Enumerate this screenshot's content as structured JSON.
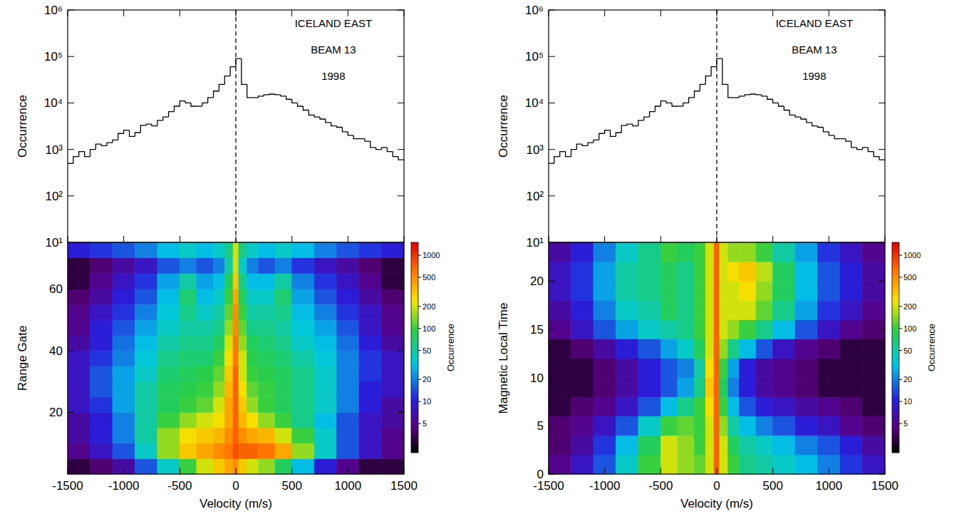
{
  "chart_data": [
    {
      "type": "histogram",
      "annotations": [
        "ICELAND EAST",
        "BEAM 13",
        "1998"
      ],
      "y_label": "Occurrence",
      "bins": [
        -1500,
        -1450,
        -1400,
        -1350,
        -1300,
        -1250,
        -1200,
        -1150,
        -1100,
        -1050,
        -1000,
        -950,
        -900,
        -850,
        -800,
        -750,
        -700,
        -650,
        -600,
        -550,
        -500,
        -450,
        -400,
        -350,
        -300,
        -250,
        -200,
        -150,
        -100,
        -50,
        0,
        50,
        100,
        150,
        200,
        250,
        300,
        350,
        400,
        450,
        500,
        550,
        600,
        650,
        700,
        750,
        800,
        850,
        900,
        950,
        1000,
        1050,
        1100,
        1150,
        1200,
        1250,
        1300,
        1350,
        1400,
        1450,
        1500
      ],
      "values": [
        500,
        700,
        900,
        700,
        1000,
        1300,
        1200,
        1400,
        1600,
        2200,
        2600,
        1900,
        2300,
        3300,
        3500,
        3200,
        4200,
        5000,
        6500,
        8500,
        11000,
        10000,
        8500,
        8500,
        10000,
        13000,
        18000,
        25000,
        38000,
        60000,
        90000,
        25000,
        13000,
        13000,
        14000,
        15000,
        15500,
        15000,
        14000,
        12000,
        10000,
        8500,
        7000,
        5500,
        5000,
        4500,
        3800,
        3200,
        3000,
        2400,
        2000,
        1700,
        1700,
        1500,
        1100,
        1000,
        1100,
        900,
        700,
        600
      ],
      "xlim": [
        -1500,
        1500
      ],
      "xticks": [
        -1500,
        -1000,
        -500,
        0,
        500,
        1000,
        1500
      ],
      "ylim": [
        10,
        1000000
      ],
      "yticks": [
        {
          "value": 10,
          "label": "10¹"
        },
        {
          "value": 100,
          "label": "10²"
        },
        {
          "value": 1000,
          "label": "10³"
        },
        {
          "value": 10000,
          "label": "10⁴"
        },
        {
          "value": 100000,
          "label": "10⁵"
        },
        {
          "value": 1000000,
          "label": "10⁶"
        }
      ],
      "log": "y",
      "tick_labels": "y",
      "vlines": [
        0
      ]
    },
    {
      "type": "heatmap",
      "x_label": "Velocity (m/s)",
      "y_label": "Range Gate",
      "x_bins": [
        -1500,
        -1300,
        -1100,
        -900,
        -700,
        -500,
        -350,
        -200,
        -100,
        -25,
        25,
        100,
        200,
        350,
        500,
        700,
        900,
        1100,
        1300,
        1500
      ],
      "y_bins": [
        0,
        5,
        10,
        15,
        20,
        25,
        30,
        35,
        40,
        45,
        50,
        55,
        60,
        65,
        70,
        75
      ],
      "cells": [
        [
          3,
          4,
          6,
          15,
          40,
          100,
          200,
          300,
          400,
          500,
          300,
          200,
          150,
          80,
          30,
          10,
          5,
          3,
          3
        ],
        [
          5,
          8,
          15,
          40,
          150,
          300,
          400,
          500,
          600,
          800,
          700,
          700,
          600,
          400,
          150,
          40,
          15,
          8,
          5
        ],
        [
          6,
          10,
          20,
          50,
          150,
          250,
          300,
          350,
          500,
          700,
          500,
          400,
          350,
          200,
          100,
          40,
          15,
          8,
          5
        ],
        [
          6,
          10,
          20,
          50,
          100,
          150,
          200,
          250,
          400,
          700,
          350,
          250,
          150,
          100,
          60,
          30,
          15,
          8,
          6
        ],
        [
          8,
          12,
          25,
          50,
          80,
          100,
          120,
          200,
          400,
          700,
          300,
          150,
          100,
          80,
          60,
          40,
          20,
          10,
          6
        ],
        [
          8,
          15,
          25,
          50,
          80,
          90,
          100,
          150,
          350,
          700,
          250,
          120,
          100,
          80,
          60,
          40,
          20,
          10,
          8
        ],
        [
          8,
          15,
          25,
          40,
          70,
          80,
          90,
          120,
          300,
          700,
          200,
          100,
          90,
          80,
          60,
          40,
          20,
          12,
          8
        ],
        [
          8,
          12,
          20,
          35,
          60,
          70,
          70,
          100,
          250,
          600,
          200,
          90,
          80,
          70,
          50,
          35,
          20,
          12,
          8
        ],
        [
          6,
          10,
          18,
          30,
          50,
          60,
          60,
          80,
          200,
          600,
          150,
          80,
          70,
          60,
          40,
          30,
          18,
          10,
          6
        ],
        [
          5,
          10,
          15,
          25,
          40,
          50,
          50,
          60,
          150,
          500,
          120,
          60,
          60,
          50,
          35,
          25,
          15,
          8,
          5
        ],
        [
          5,
          8,
          12,
          20,
          35,
          60,
          40,
          50,
          120,
          500,
          100,
          50,
          50,
          60,
          30,
          20,
          12,
          8,
          5
        ],
        [
          4,
          6,
          10,
          15,
          30,
          70,
          30,
          40,
          100,
          400,
          80,
          40,
          40,
          70,
          25,
          15,
          10,
          6,
          4
        ],
        [
          3,
          5,
          8,
          12,
          25,
          50,
          25,
          30,
          80,
          300,
          60,
          30,
          30,
          50,
          20,
          12,
          8,
          5,
          3
        ],
        [
          3,
          4,
          6,
          8,
          15,
          20,
          15,
          20,
          50,
          200,
          40,
          20,
          15,
          20,
          12,
          8,
          6,
          4,
          3
        ],
        [
          10,
          12,
          15,
          20,
          30,
          40,
          30,
          40,
          60,
          200,
          60,
          40,
          30,
          40,
          30,
          20,
          15,
          12,
          10
        ]
      ],
      "xlim": [
        -1500,
        1500
      ],
      "xticks": [
        -1500,
        -1000,
        -500,
        0,
        500,
        1000,
        1500
      ],
      "ylim": [
        0,
        75
      ],
      "yticks": [
        20,
        40,
        60
      ],
      "colorbar": {
        "label": "Occurrence",
        "range": [
          2,
          1500
        ],
        "ticks": [
          5,
          10,
          20,
          50,
          100,
          200,
          500,
          1000
        ],
        "log": true
      },
      "vlines": [
        0
      ]
    },
    {
      "type": "histogram",
      "annotations": [
        "ICELAND EAST",
        "BEAM 13",
        "1998"
      ],
      "y_label": "Occurrence",
      "bins": [
        -1500,
        -1450,
        -1400,
        -1350,
        -1300,
        -1250,
        -1200,
        -1150,
        -1100,
        -1050,
        -1000,
        -950,
        -900,
        -850,
        -800,
        -750,
        -700,
        -650,
        -600,
        -550,
        -500,
        -450,
        -400,
        -350,
        -300,
        -250,
        -200,
        -150,
        -100,
        -50,
        0,
        50,
        100,
        150,
        200,
        250,
        300,
        350,
        400,
        450,
        500,
        550,
        600,
        650,
        700,
        750,
        800,
        850,
        900,
        950,
        1000,
        1050,
        1100,
        1150,
        1200,
        1250,
        1300,
        1350,
        1400,
        1450,
        1500
      ],
      "values": [
        500,
        700,
        900,
        700,
        1000,
        1300,
        1200,
        1400,
        1600,
        2200,
        2600,
        1900,
        2300,
        3300,
        3500,
        3200,
        4200,
        5000,
        6500,
        8500,
        11000,
        10000,
        8500,
        8500,
        10000,
        13000,
        18000,
        25000,
        38000,
        60000,
        90000,
        25000,
        13000,
        13000,
        14000,
        15000,
        15500,
        15000,
        14000,
        12000,
        10000,
        8500,
        7000,
        5500,
        5000,
        4500,
        3800,
        3200,
        3000,
        2400,
        2000,
        1700,
        1700,
        1500,
        1100,
        1000,
        1100,
        900,
        700,
        600
      ],
      "xlim": [
        -1500,
        1500
      ],
      "xticks": [
        -1500,
        -1000,
        -500,
        0,
        500,
        1000,
        1500
      ],
      "ylim": [
        10,
        1000000
      ],
      "yticks": [
        {
          "value": 10,
          "label": "10¹"
        },
        {
          "value": 100,
          "label": "10²"
        },
        {
          "value": 1000,
          "label": "10³"
        },
        {
          "value": 10000,
          "label": "10⁴"
        },
        {
          "value": 100000,
          "label": "10⁵"
        },
        {
          "value": 1000000,
          "label": "10⁶"
        }
      ],
      "log": "y",
      "tick_labels": "y",
      "vlines": [
        0
      ]
    },
    {
      "type": "heatmap",
      "x_label": "Velocity (m/s)",
      "y_label": "Magnetic Local Time",
      "x_bins": [
        -1500,
        -1300,
        -1100,
        -900,
        -700,
        -500,
        -350,
        -200,
        -100,
        -25,
        25,
        100,
        200,
        350,
        500,
        700,
        900,
        1100,
        1300,
        1500
      ],
      "y_bins": [
        0,
        2,
        4,
        6,
        8,
        10,
        12,
        14,
        16,
        18,
        20,
        22,
        24
      ],
      "cells": [
        [
          5,
          8,
          15,
          40,
          100,
          200,
          150,
          120,
          200,
          700,
          200,
          100,
          60,
          50,
          40,
          30,
          20,
          12,
          8
        ],
        [
          4,
          6,
          12,
          30,
          80,
          200,
          150,
          100,
          200,
          700,
          200,
          80,
          50,
          40,
          30,
          20,
          15,
          10,
          6
        ],
        [
          4,
          5,
          8,
          15,
          40,
          100,
          120,
          100,
          200,
          700,
          150,
          50,
          30,
          20,
          15,
          10,
          8,
          5,
          4
        ],
        [
          3,
          4,
          5,
          8,
          15,
          30,
          60,
          100,
          250,
          700,
          100,
          30,
          15,
          10,
          8,
          6,
          5,
          4,
          3
        ],
        [
          3,
          3,
          4,
          6,
          10,
          15,
          25,
          60,
          300,
          700,
          80,
          20,
          10,
          6,
          5,
          4,
          3,
          3,
          3
        ],
        [
          3,
          3,
          4,
          6,
          10,
          15,
          20,
          50,
          250,
          700,
          100,
          25,
          10,
          6,
          5,
          4,
          3,
          3,
          3
        ],
        [
          3,
          4,
          6,
          10,
          15,
          25,
          40,
          80,
          200,
          700,
          150,
          60,
          30,
          15,
          8,
          5,
          4,
          3,
          3
        ],
        [
          5,
          8,
          15,
          25,
          40,
          50,
          60,
          100,
          200,
          700,
          200,
          150,
          100,
          60,
          30,
          15,
          8,
          5,
          4
        ],
        [
          6,
          10,
          20,
          40,
          50,
          80,
          60,
          100,
          200,
          700,
          200,
          200,
          200,
          120,
          60,
          25,
          12,
          8,
          5
        ],
        [
          8,
          12,
          25,
          50,
          60,
          80,
          60,
          100,
          200,
          700,
          200,
          200,
          250,
          150,
          80,
          30,
          15,
          10,
          6
        ],
        [
          8,
          12,
          25,
          50,
          60,
          80,
          60,
          100,
          200,
          700,
          200,
          250,
          300,
          180,
          80,
          30,
          15,
          10,
          6
        ],
        [
          6,
          10,
          20,
          40,
          60,
          100,
          80,
          100,
          200,
          700,
          200,
          150,
          150,
          100,
          50,
          25,
          12,
          8,
          5
        ]
      ],
      "xlim": [
        -1500,
        1500
      ],
      "xticks": [
        -1500,
        -1000,
        -500,
        0,
        500,
        1000,
        1500
      ],
      "ylim": [
        0,
        24
      ],
      "yticks": [
        0,
        5,
        10,
        15,
        20
      ],
      "colorbar": {
        "label": "Occurrence",
        "range": [
          2,
          1500
        ],
        "ticks": [
          5,
          10,
          20,
          50,
          100,
          200,
          500,
          1000
        ],
        "log": true
      },
      "vlines": [
        0
      ]
    }
  ]
}
